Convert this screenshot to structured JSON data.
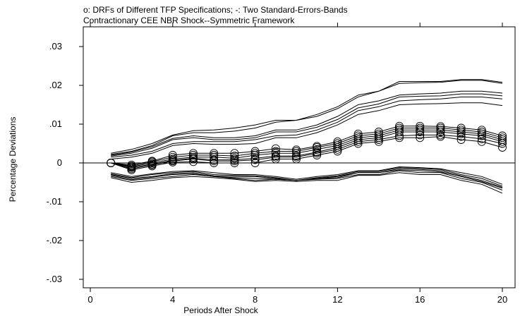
{
  "chart_data": {
    "type": "line",
    "title": "o: DRFs of Different TFP Specifications; -: Two Standard-Errors-Bands",
    "subtitle": "Contractionary CEE NBR Shock--Symmetric Framework",
    "xlabel": "Periods After Shock",
    "ylabel": "Percentage Deviations",
    "xlim": [
      0,
      20.5
    ],
    "ylim": [
      -0.035,
      0.035
    ],
    "x_ticks": [
      0,
      4,
      8,
      12,
      16,
      20
    ],
    "x_tick_labels": [
      "0",
      "4",
      "8",
      "12",
      "16",
      "20"
    ],
    "y_ticks": [
      -0.03,
      -0.02,
      -0.01,
      0,
      0.01,
      0.02,
      0.03
    ],
    "y_tick_labels": [
      "-.03",
      "-.02",
      "-.01",
      "0",
      ".01",
      ".02",
      ".03"
    ],
    "grid": false,
    "zero_line": true,
    "x": [
      1,
      2,
      3,
      4,
      5,
      6,
      7,
      8,
      9,
      10,
      11,
      12,
      13,
      14,
      15,
      16,
      17,
      18,
      19,
      20
    ],
    "drf_series": [
      {
        "values": [
          0.0,
          -0.0005,
          0.0005,
          0.002,
          0.0025,
          0.0025,
          0.0025,
          0.003,
          0.0037,
          0.0034,
          0.0043,
          0.0055,
          0.0075,
          0.008,
          0.0095,
          0.0095,
          0.0094,
          0.009,
          0.0085,
          0.007
        ]
      },
      {
        "values": [
          0.0,
          -0.0008,
          0.0003,
          0.0015,
          0.002,
          0.002,
          0.0018,
          0.0025,
          0.003,
          0.003,
          0.004,
          0.005,
          0.007,
          0.0075,
          0.009,
          0.009,
          0.009,
          0.0085,
          0.008,
          0.0065
        ]
      },
      {
        "values": [
          0.0,
          -0.001,
          0.0,
          0.001,
          0.0015,
          0.0015,
          0.0012,
          0.002,
          0.0025,
          0.0025,
          0.0035,
          0.0045,
          0.0065,
          0.007,
          0.0085,
          0.0085,
          0.0085,
          0.008,
          0.0075,
          0.006
        ]
      },
      {
        "values": [
          0.0,
          -0.0012,
          -0.0003,
          0.0007,
          0.0012,
          0.0008,
          0.0008,
          0.0012,
          0.0018,
          0.0018,
          0.0028,
          0.004,
          0.006,
          0.0065,
          0.008,
          0.008,
          0.008,
          0.0075,
          0.007,
          0.0055
        ]
      },
      {
        "values": [
          0.0,
          -0.0015,
          -0.0005,
          0.0005,
          0.001,
          0.0005,
          0.0005,
          0.0008,
          0.0015,
          0.0015,
          0.0025,
          0.0035,
          0.0055,
          0.006,
          0.007,
          0.0072,
          0.0072,
          0.0068,
          0.0062,
          0.005
        ]
      },
      {
        "values": [
          0.0,
          -0.0018,
          -0.0008,
          0.0002,
          0.0003,
          0.0,
          0.0,
          0.0,
          0.001,
          0.001,
          0.002,
          0.003,
          0.005,
          0.0055,
          0.0065,
          0.0065,
          0.0068,
          0.006,
          0.0055,
          0.004
        ]
      }
    ],
    "upper_bands": [
      {
        "values": [
          0.0025,
          0.0035,
          0.005,
          0.0072,
          0.0083,
          0.0085,
          0.009,
          0.0098,
          0.011,
          0.011,
          0.0125,
          0.0145,
          0.0175,
          0.0185,
          0.021,
          0.021,
          0.021,
          0.0215,
          0.0215,
          0.0208
        ]
      },
      {
        "values": [
          0.0022,
          0.003,
          0.0045,
          0.007,
          0.0078,
          0.0078,
          0.0082,
          0.009,
          0.0105,
          0.011,
          0.012,
          0.014,
          0.017,
          0.0185,
          0.0205,
          0.0207,
          0.0208,
          0.0213,
          0.0213,
          0.0205
        ]
      },
      {
        "values": [
          0.002,
          0.0028,
          0.0042,
          0.0063,
          0.007,
          0.0065,
          0.0065,
          0.007,
          0.0085,
          0.0085,
          0.0098,
          0.012,
          0.015,
          0.016,
          0.0175,
          0.0178,
          0.018,
          0.0185,
          0.0185,
          0.018
        ]
      },
      {
        "values": [
          0.0018,
          0.0025,
          0.0038,
          0.006,
          0.0065,
          0.006,
          0.006,
          0.0065,
          0.008,
          0.008,
          0.0092,
          0.0112,
          0.0142,
          0.0152,
          0.017,
          0.0172,
          0.0173,
          0.0178,
          0.0178,
          0.0173
        ]
      },
      {
        "values": [
          0.0015,
          0.002,
          0.003,
          0.005,
          0.0055,
          0.0055,
          0.0055,
          0.006,
          0.007,
          0.0072,
          0.0085,
          0.0105,
          0.0135,
          0.0145,
          0.016,
          0.0163,
          0.0165,
          0.017,
          0.017,
          0.0165
        ]
      },
      {
        "values": [
          0.001,
          0.0015,
          0.0025,
          0.0045,
          0.005,
          0.0048,
          0.0048,
          0.005,
          0.0065,
          0.0065,
          0.0078,
          0.0098,
          0.0125,
          0.0135,
          0.015,
          0.0152,
          0.0153,
          0.0155,
          0.0155,
          0.0148
        ]
      }
    ],
    "lower_bands": [
      {
        "values": [
          -0.0025,
          -0.0035,
          -0.0028,
          -0.0022,
          -0.002,
          -0.0025,
          -0.003,
          -0.003,
          -0.0035,
          -0.0042,
          -0.0035,
          -0.003,
          -0.002,
          -0.002,
          -0.001,
          -0.0012,
          -0.0015,
          -0.0025,
          -0.0035,
          -0.0055
        ]
      },
      {
        "values": [
          -0.0028,
          -0.0038,
          -0.003,
          -0.0025,
          -0.0022,
          -0.003,
          -0.0032,
          -0.0033,
          -0.0038,
          -0.0045,
          -0.0038,
          -0.0033,
          -0.0022,
          -0.0022,
          -0.0012,
          -0.0014,
          -0.0017,
          -0.003,
          -0.004,
          -0.006
        ]
      },
      {
        "values": [
          -0.003,
          -0.004,
          -0.0035,
          -0.0028,
          -0.0025,
          -0.0033,
          -0.0035,
          -0.0035,
          -0.004,
          -0.0045,
          -0.004,
          -0.0035,
          -0.0025,
          -0.0025,
          -0.0015,
          -0.0017,
          -0.002,
          -0.0033,
          -0.0045,
          -0.0063
        ]
      },
      {
        "values": [
          -0.0032,
          -0.0043,
          -0.0037,
          -0.003,
          -0.0028,
          -0.0035,
          -0.0038,
          -0.004,
          -0.0042,
          -0.0045,
          -0.004,
          -0.0038,
          -0.0025,
          -0.0025,
          -0.0018,
          -0.002,
          -0.0023,
          -0.0035,
          -0.0048,
          -0.0065
        ]
      },
      {
        "values": [
          -0.0035,
          -0.0045,
          -0.004,
          -0.0035,
          -0.003,
          -0.0035,
          -0.004,
          -0.0045,
          -0.0042,
          -0.0045,
          -0.0042,
          -0.004,
          -0.003,
          -0.003,
          -0.002,
          -0.0025,
          -0.0025,
          -0.004,
          -0.005,
          -0.007
        ]
      },
      {
        "values": [
          -0.0038,
          -0.005,
          -0.0045,
          -0.0038,
          -0.0035,
          -0.0038,
          -0.0042,
          -0.0048,
          -0.0045,
          -0.0048,
          -0.0045,
          -0.0045,
          -0.0032,
          -0.0032,
          -0.0025,
          -0.003,
          -0.003,
          -0.0045,
          -0.0055,
          -0.0078
        ]
      }
    ]
  }
}
